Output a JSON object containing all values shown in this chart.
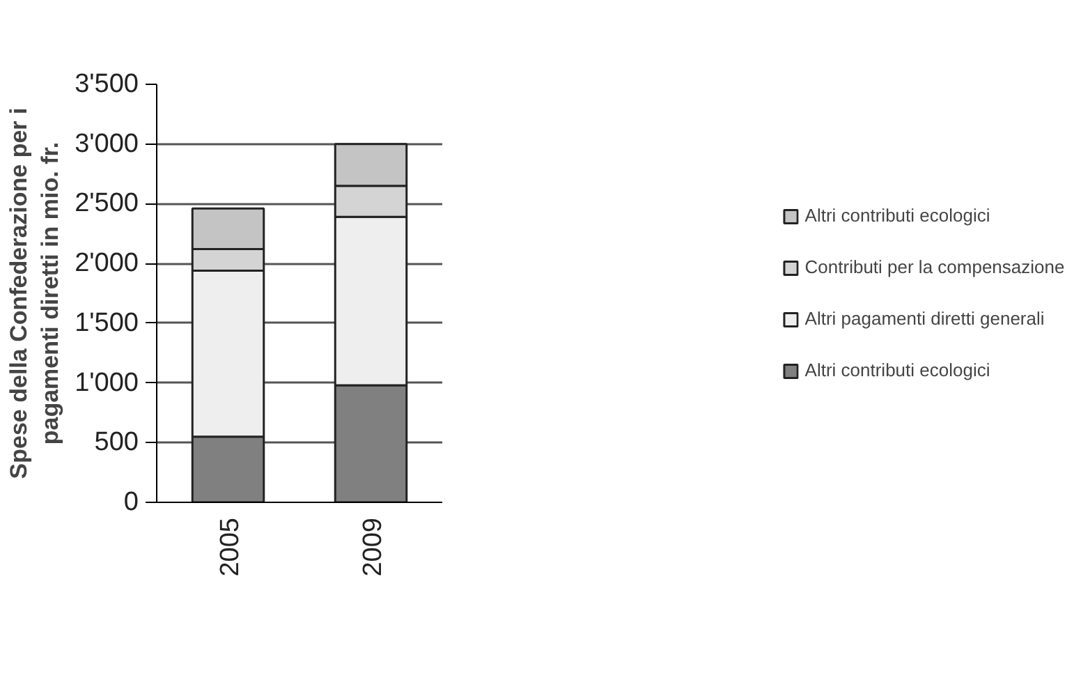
{
  "chart_data": {
    "type": "bar",
    "stacked": true,
    "ylabel": "Spese della Confederazione per i\npagamenti diretti in mio. fr.",
    "categories": [
      "2005",
      "2009"
    ],
    "series": [
      {
        "name": "Altri contributi ecologici",
        "color": "#808080",
        "values": [
          550,
          980
        ]
      },
      {
        "name": "Altri pagamenti diretti generali",
        "color": "#eeeeee",
        "values": [
          1390,
          1410
        ]
      },
      {
        "name": "Contributi per la compensazione",
        "color": "#d4d4d4",
        "values": [
          180,
          260
        ]
      },
      {
        "name": "Altri contributi ecologici",
        "color": "#c4c4c4",
        "values": [
          340,
          350
        ]
      }
    ],
    "ylim": [
      0,
      3500
    ],
    "yticks": [
      0,
      500,
      {
        "value": 1000,
        "label": "1'000"
      },
      {
        "value": 1500,
        "label": "1'500"
      },
      {
        "value": 2000,
        "label": "2'000"
      },
      {
        "value": 2500,
        "label": "2'500"
      },
      {
        "value": 3000,
        "label": "3'000"
      },
      {
        "value": 3500,
        "label": "3'500"
      }
    ],
    "grid": "y",
    "legend": "right"
  }
}
